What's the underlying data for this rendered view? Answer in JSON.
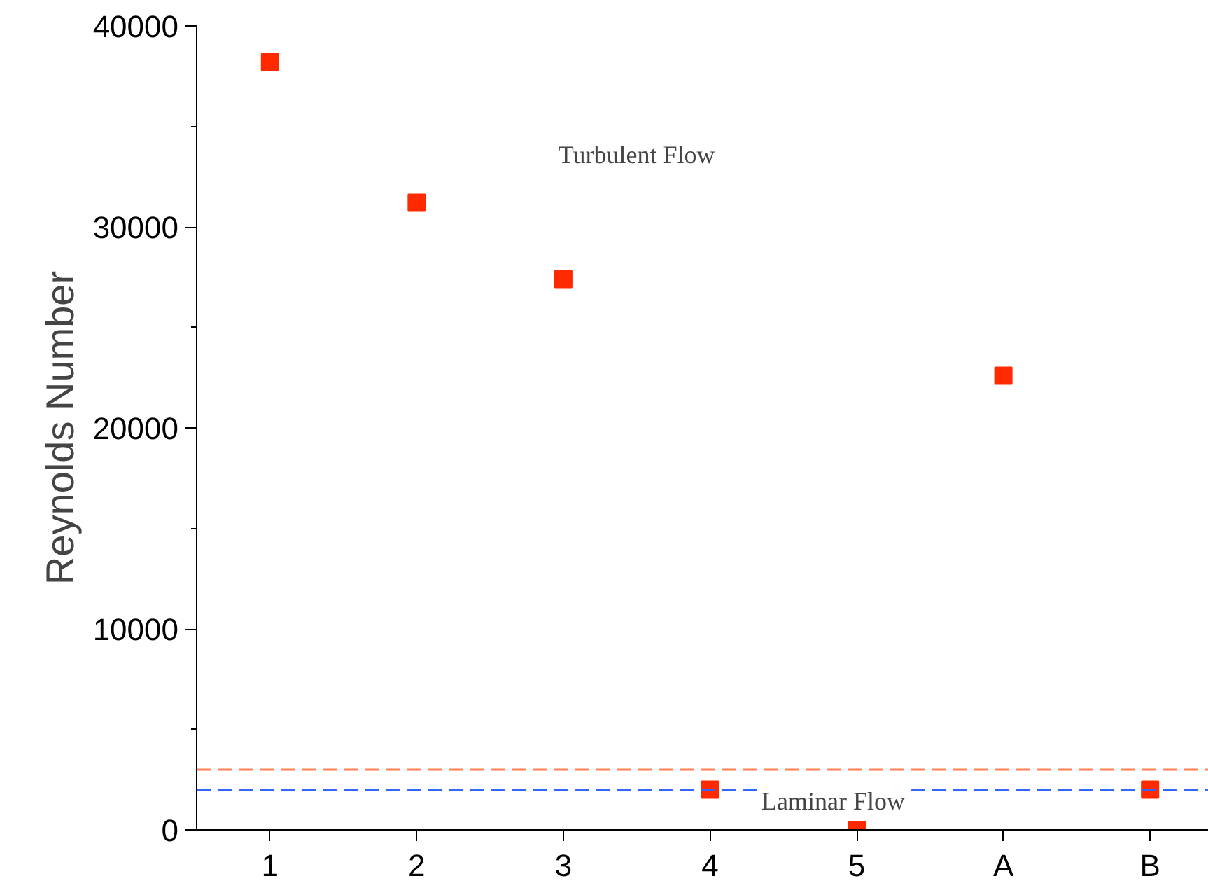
{
  "chart_data": {
    "type": "scatter",
    "ylabel": "Reynolds Number",
    "categories": [
      "1",
      "2",
      "3",
      "4",
      "5",
      "A",
      "B"
    ],
    "series": [
      {
        "color": "#ff2a00",
        "values": [
          38200,
          31200,
          27400,
          2000,
          0,
          22600,
          2000
        ]
      }
    ],
    "ylim": [
      0,
      40000
    ],
    "yticks": [
      0,
      {
        "value": 5000,
        "label": null
      },
      10000,
      {
        "value": 15000,
        "label": null
      },
      20000,
      {
        "value": 25000,
        "label": null
      },
      30000,
      {
        "value": 35000,
        "label": null
      },
      40000
    ],
    "marker": "square",
    "grid": false,
    "ref_lines": [
      {
        "axis": "y",
        "value": 3000,
        "color": "#ff7f50",
        "line_style": "dashed"
      },
      {
        "axis": "y",
        "value": 2000,
        "label": "Laminar Flow",
        "color": "#3366ff",
        "line_style": "dashed"
      }
    ],
    "annotations": [
      "Turbulent Flow"
    ]
  }
}
